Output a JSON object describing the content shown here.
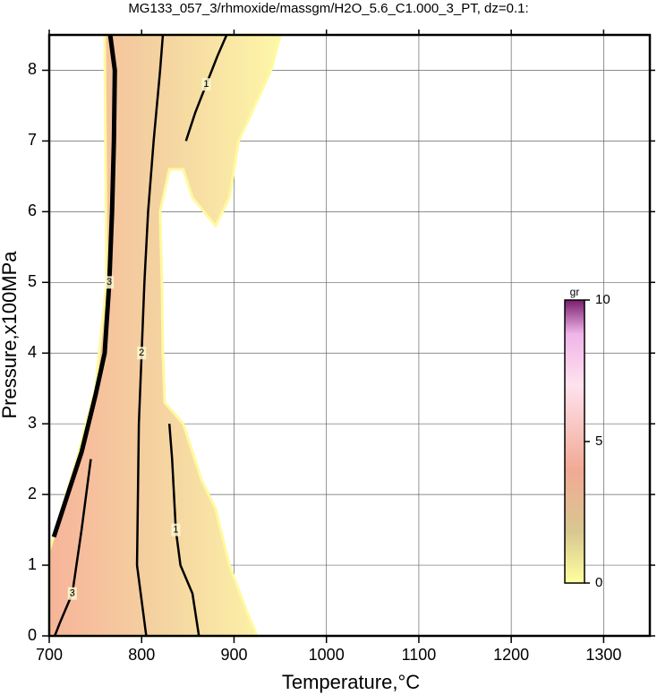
{
  "chart_data": {
    "type": "contour",
    "title": "MG133_057_3/rhmoxide/massgm/H2O_5.6_C1.000_3_PT, dz=0.1:",
    "x_label": "Temperature,°C",
    "y_label": "Pressure,x100MPa",
    "xlim": [
      700,
      1350
    ],
    "ylim": [
      0,
      8.5
    ],
    "xticks": [
      700,
      800,
      900,
      1000,
      1100,
      1200,
      1300
    ],
    "yticks": [
      0,
      1,
      2,
      3,
      4,
      5,
      6,
      7,
      8
    ],
    "grid": true,
    "region": {
      "x": [
        700,
        925,
        915,
        895,
        880,
        865,
        845,
        825,
        823,
        822,
        820,
        830,
        845,
        855,
        880,
        895,
        905,
        940,
        950,
        760,
        762,
        750,
        730,
        700
      ],
      "y": [
        0,
        0,
        0.3,
        1.0,
        1.8,
        2.2,
        3.0,
        3.3,
        4.0,
        5.0,
        6.0,
        6.6,
        6.6,
        6.2,
        5.8,
        6.2,
        7.0,
        8.0,
        8.5,
        8.5,
        5.0,
        3.5,
        2.5,
        1.2
      ]
    },
    "contours": [
      {
        "level": 1,
        "x": [
          862,
          855,
          842,
          837,
          835,
          833,
          830
        ],
        "y": [
          0,
          0.6,
          1.0,
          1.5,
          2.0,
          2.5,
          3.0
        ]
      },
      {
        "level": 1,
        "x": [
          848,
          858,
          870,
          882,
          892
        ],
        "y": [
          7.0,
          7.4,
          7.8,
          8.2,
          8.5
        ]
      },
      {
        "level": 2,
        "x": [
          805,
          800,
          795,
          796,
          797,
          800,
          803,
          807,
          813,
          820,
          823
        ],
        "y": [
          0,
          0.5,
          1.0,
          2.0,
          3.0,
          4.0,
          5.0,
          6.0,
          7.0,
          8.0,
          8.5
        ]
      },
      {
        "level": 3,
        "x": [
          705,
          720,
          735,
          750,
          760,
          765,
          768,
          770,
          771,
          766
        ],
        "y": [
          1.4,
          2.0,
          2.6,
          3.4,
          4.0,
          5.0,
          6.0,
          7.0,
          8.0,
          8.5
        ]
      },
      {
        "level": 3,
        "x": [
          706,
          712,
          725,
          735,
          745
        ],
        "y": [
          0,
          0.2,
          0.6,
          1.5,
          2.5
        ]
      }
    ],
    "colorbar": {
      "label": "gr",
      "lim": [
        0,
        10
      ],
      "ticks": [
        0,
        5,
        10
      ]
    }
  }
}
